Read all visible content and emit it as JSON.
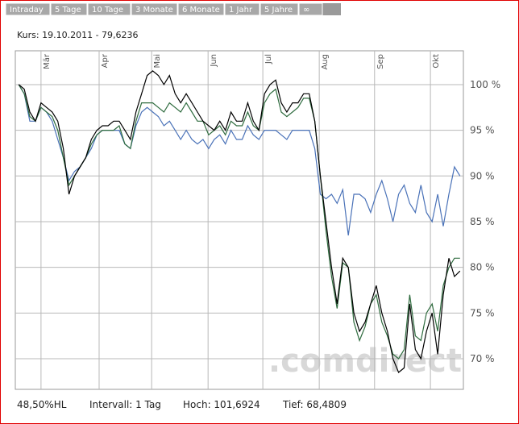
{
  "tabs": [
    "Intraday",
    "5 Tage",
    "10 Tage",
    "3 Monate",
    "6 Monate",
    "1 Jahr",
    "5 Jahre",
    "∞"
  ],
  "chart_data": {
    "type": "line",
    "title": "Kurs: 19.10.2011 - 79,6236",
    "watermark": ".comdirect",
    "xlim": [
      -0.6,
      79.6
    ],
    "xticks": [
      {
        "value": 4,
        "label": "Mär"
      },
      {
        "value": 14.4,
        "label": "Apr"
      },
      {
        "value": 23.8,
        "label": "Mai"
      },
      {
        "value": 33.9,
        "label": "Jun"
      },
      {
        "value": 43.7,
        "label": "Jul"
      },
      {
        "value": 53.8,
        "label": "Aug"
      },
      {
        "value": 63.7,
        "label": "Sep"
      },
      {
        "value": 73.7,
        "label": "Okt"
      }
    ],
    "ylim": [
      66.65,
      103.7
    ],
    "yticks": [
      {
        "value": 70,
        "label": "70 %"
      },
      {
        "value": 75,
        "label": "75 %"
      },
      {
        "value": 80,
        "label": "80 %"
      },
      {
        "value": 85,
        "label": "85 %"
      },
      {
        "value": 90,
        "label": "90 %"
      },
      {
        "value": 95,
        "label": "95 %"
      },
      {
        "value": 100,
        "label": "100 %"
      }
    ],
    "grid": true,
    "series": [
      {
        "color": "#4a72b8",
        "values": [
          100,
          99,
          96,
          96,
          97.5,
          97,
          96,
          94,
          92,
          89.5,
          90.5,
          91,
          92,
          93,
          94.5,
          95,
          95,
          95,
          95,
          93.5,
          93,
          95.5,
          97,
          97.5,
          97,
          96.5,
          95.5,
          96,
          95,
          94,
          95,
          94,
          93.5,
          94,
          93,
          94,
          94.5,
          93.5,
          95,
          94,
          94,
          95.5,
          94.5,
          94,
          95,
          95,
          95,
          94.5,
          94,
          95,
          95,
          95,
          95,
          93,
          88,
          87.5,
          88,
          87,
          88.5,
          83.5,
          88,
          88,
          87.5,
          86,
          88,
          89.5,
          87.5,
          85,
          88,
          89,
          87,
          86,
          89,
          86,
          85,
          88,
          84.5,
          88,
          91,
          90
        ]
      },
      {
        "color": "#2e6b3e",
        "values": [
          100,
          99,
          96.5,
          96,
          97.5,
          97,
          96.5,
          95,
          92,
          89,
          90,
          91,
          92,
          93.5,
          94.5,
          95,
          95,
          95,
          95.5,
          93.5,
          93,
          96,
          98,
          98,
          98,
          97.5,
          97,
          98,
          97.5,
          97,
          98,
          97,
          96,
          96,
          94.5,
          95,
          95.5,
          94.5,
          96,
          95.5,
          95.5,
          97,
          95.5,
          95,
          98,
          99,
          99.5,
          97,
          96.5,
          97,
          97.5,
          98.5,
          98.5,
          96,
          90,
          84,
          79,
          75.5,
          80.5,
          80,
          74,
          72,
          73.5,
          76,
          77,
          74,
          72.5,
          70.5,
          70,
          71,
          77,
          72.5,
          72,
          75,
          76,
          73,
          78,
          80,
          81,
          81
        ]
      },
      {
        "color": "#000000",
        "values": [
          100,
          99.5,
          97,
          96,
          98,
          97.5,
          97,
          96,
          93,
          88,
          90,
          91,
          92,
          94,
          95,
          95.5,
          95.5,
          96,
          96,
          95,
          94,
          97,
          99,
          101,
          101.5,
          101,
          100,
          101,
          99,
          98,
          99,
          98,
          97,
          96,
          95.5,
          95,
          96,
          95,
          97,
          96,
          96,
          98,
          96,
          95,
          99,
          100,
          100.5,
          98,
          97,
          98,
          98,
          99,
          99,
          96,
          90,
          85,
          80,
          76,
          81,
          80,
          75,
          73,
          74,
          76,
          78,
          75,
          73,
          70,
          68.5,
          69,
          76,
          71,
          70,
          73,
          75,
          70.5,
          77,
          81,
          79,
          79.6
        ]
      }
    ]
  },
  "footer": [
    "48,50%HL",
    "Intervall: 1 Tag",
    "Hoch: 101,6924",
    "Tief: 68,4809"
  ]
}
